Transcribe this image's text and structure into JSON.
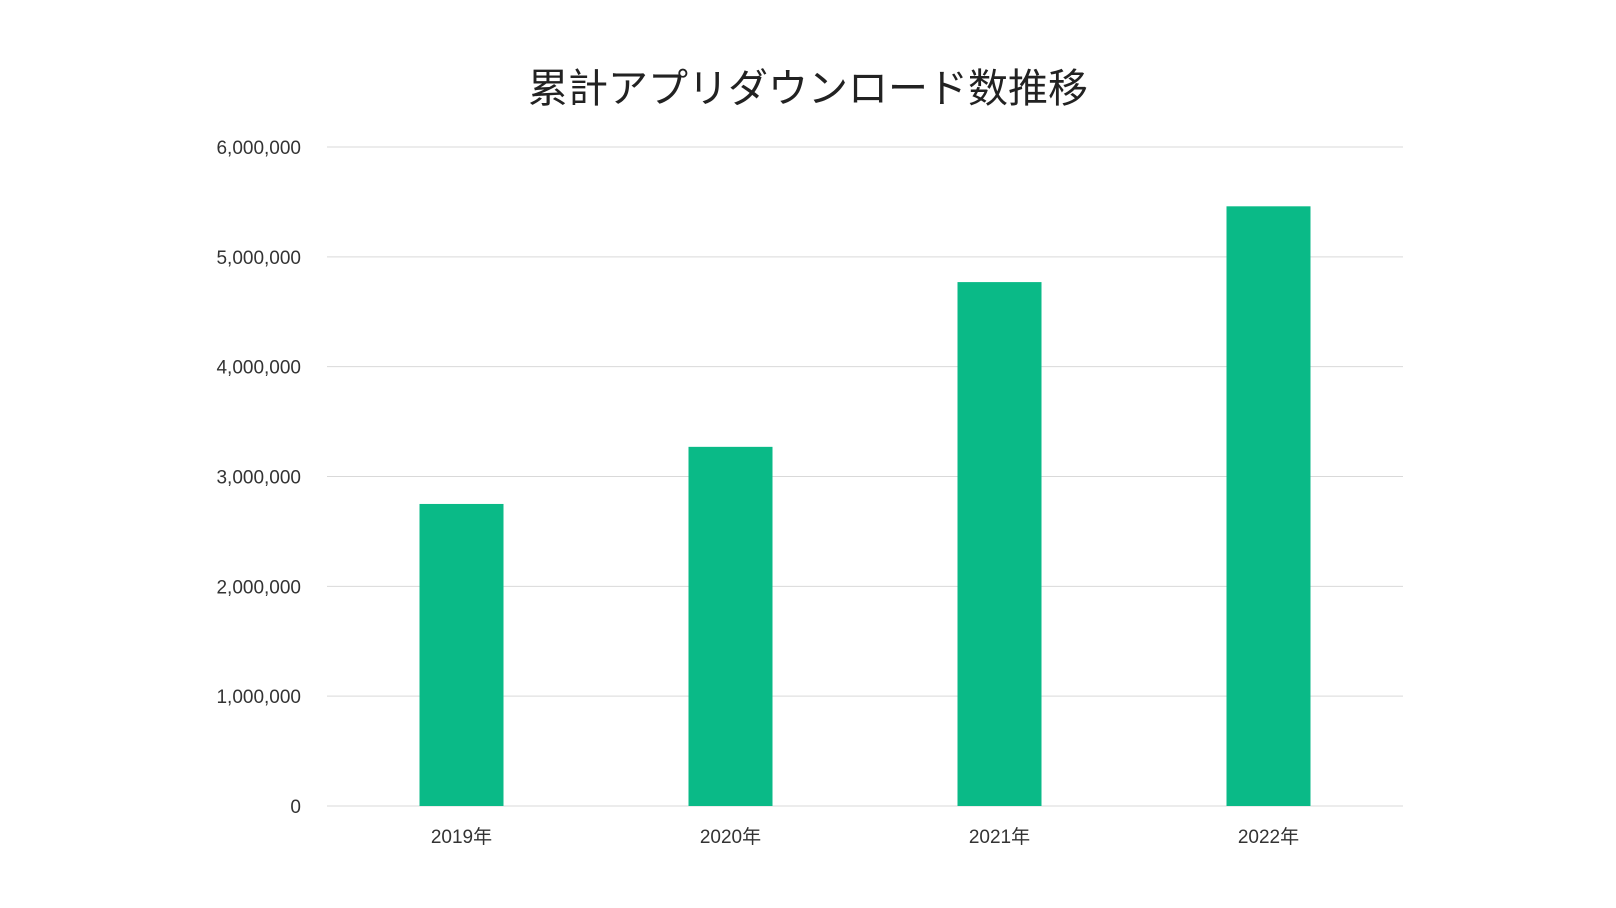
{
  "chart_data": {
    "type": "bar",
    "title": "累計アプリダウンロード数推移",
    "xlabel": "",
    "ylabel": "",
    "categories": [
      "2019年",
      "2020年",
      "2021年",
      "2022年"
    ],
    "values": [
      2750000,
      3270000,
      4770000,
      5460000
    ],
    "ylim": [
      0,
      6000000
    ],
    "yticks": [
      0,
      1000000,
      2000000,
      3000000,
      4000000,
      5000000,
      6000000
    ],
    "ytick_labels": [
      "0",
      "1,000,000",
      "2,000,000",
      "3,000,000",
      "4,000,000",
      "5,000,000",
      "6,000,000"
    ],
    "grid": true,
    "legend": "none",
    "bar_color": "#0aba87"
  }
}
